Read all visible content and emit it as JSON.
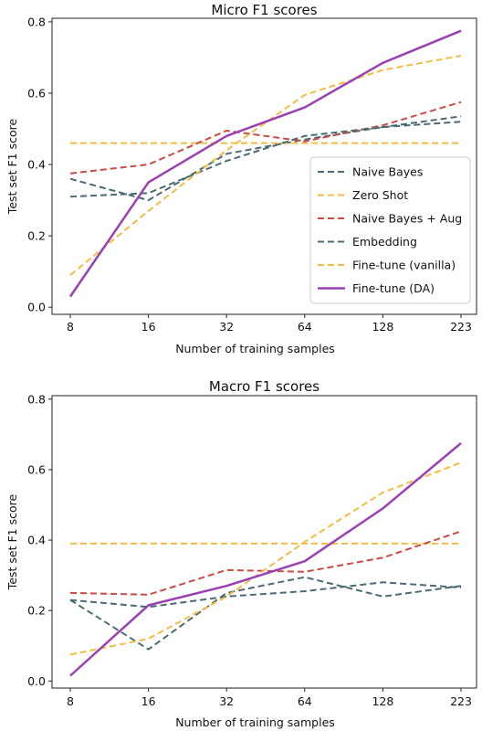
{
  "chart_data": [
    {
      "type": "line",
      "title": "Micro F1 scores",
      "xlabel": "Number of training samples",
      "ylabel": "Test set F1 score",
      "categories": [
        "8",
        "16",
        "32",
        "64",
        "128",
        "223"
      ],
      "yticks": [
        "0.0",
        "0.2",
        "0.4",
        "0.6",
        "0.8"
      ],
      "ylim": [
        -0.02,
        0.81
      ],
      "legend_position": "lower-right",
      "series": [
        {
          "name": "Naive Bayes",
          "color": "#4a6b73",
          "style": "dashed",
          "values": [
            0.36,
            0.3,
            0.43,
            0.47,
            0.505,
            0.52
          ]
        },
        {
          "name": "Zero Shot",
          "color": "#f2bd40",
          "style": "dashed",
          "values": [
            0.46,
            0.46,
            0.46,
            0.46,
            0.46,
            0.46
          ]
        },
        {
          "name": "Naive Bayes + Aug",
          "color": "#cb4a44",
          "style": "dashed",
          "values": [
            0.375,
            0.4,
            0.495,
            0.465,
            0.51,
            0.575
          ]
        },
        {
          "name": "Embedding",
          "color": "#4a6b73",
          "style": "dashed",
          "values": [
            0.31,
            0.32,
            0.41,
            0.48,
            0.505,
            0.535
          ]
        },
        {
          "name": "Fine-tune (vanilla)",
          "color": "#f2bd40",
          "style": "dashed",
          "values": [
            0.09,
            0.27,
            0.44,
            0.595,
            0.665,
            0.705
          ]
        },
        {
          "name": "Fine-tune (DA)",
          "color": "#9b3fb5",
          "style": "solid",
          "values": [
            0.03,
            0.35,
            0.48,
            0.56,
            0.685,
            0.775
          ]
        }
      ]
    },
    {
      "type": "line",
      "title": "Macro F1 scores",
      "xlabel": "Number of training samples",
      "ylabel": "Test set F1 score",
      "categories": [
        "8",
        "16",
        "32",
        "64",
        "128",
        "223"
      ],
      "yticks": [
        "0.0",
        "0.2",
        "0.4",
        "0.6",
        "0.8"
      ],
      "ylim": [
        -0.02,
        0.81
      ],
      "series": [
        {
          "name": "Naive Bayes",
          "color": "#4a6b73",
          "style": "dashed",
          "values": [
            0.23,
            0.09,
            0.25,
            0.295,
            0.24,
            0.27
          ]
        },
        {
          "name": "Zero Shot",
          "color": "#f2bd40",
          "style": "dashed",
          "values": [
            0.39,
            0.39,
            0.39,
            0.39,
            0.39,
            0.39
          ]
        },
        {
          "name": "Naive Bayes + Aug",
          "color": "#cb4a44",
          "style": "dashed",
          "values": [
            0.25,
            0.245,
            0.315,
            0.31,
            0.35,
            0.425
          ]
        },
        {
          "name": "Embedding",
          "color": "#4a6b73",
          "style": "dashed",
          "values": [
            0.23,
            0.21,
            0.24,
            0.255,
            0.28,
            0.265
          ]
        },
        {
          "name": "Fine-tune (vanilla)",
          "color": "#f2bd40",
          "style": "dashed",
          "values": [
            0.075,
            0.12,
            0.24,
            0.395,
            0.535,
            0.62
          ]
        },
        {
          "name": "Fine-tune (DA)",
          "color": "#9b3fb5",
          "style": "solid",
          "values": [
            0.015,
            0.215,
            0.27,
            0.34,
            0.49,
            0.675
          ]
        }
      ]
    }
  ]
}
